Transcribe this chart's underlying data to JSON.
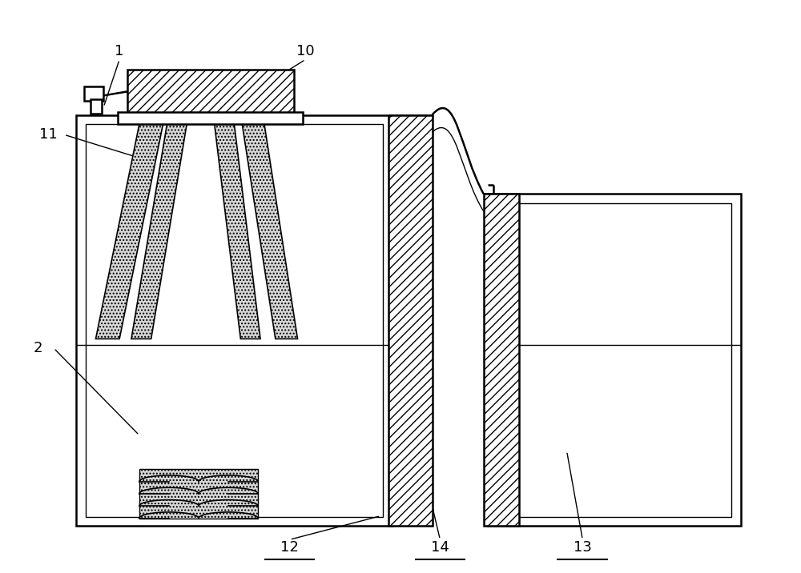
{
  "bg_color": "#ffffff",
  "line_color": "#000000",
  "fig_width": 10.0,
  "fig_height": 7.16,
  "lw_main": 1.8,
  "lw_thin": 1.0,
  "label_fontsize": 13
}
